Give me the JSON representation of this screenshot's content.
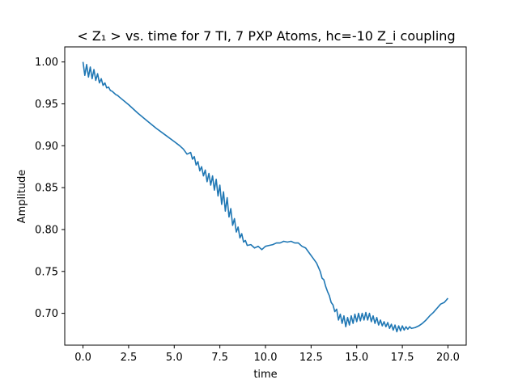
{
  "chart_data": {
    "type": "line",
    "title": "< Z₁ >  vs. time for 7 TI, 7 PXP Atoms, hᴄ=-10 Z_i coupling",
    "xlabel": "time",
    "ylabel": "Amplitude",
    "xlim": [
      -1.0,
      21.0
    ],
    "ylim": [
      0.662,
      1.018
    ],
    "xticks": [
      "0.0",
      "2.5",
      "5.0",
      "7.5",
      "10.0",
      "12.5",
      "15.0",
      "17.5",
      "20.0"
    ],
    "yticks": [
      "0.70",
      "0.75",
      "0.80",
      "0.85",
      "0.90",
      "0.95",
      "1.00"
    ],
    "grid": false,
    "legend": "none",
    "line_color": "#1f77b4",
    "series": [
      {
        "x": [
          0.0,
          0.1,
          0.2,
          0.3,
          0.4,
          0.5,
          0.6,
          0.7,
          0.8,
          0.9,
          1.0,
          1.1,
          1.2,
          1.3,
          1.4,
          1.5,
          1.6,
          1.7,
          1.8,
          1.9,
          2.0,
          2.5,
          3.0,
          3.5,
          4.0,
          4.5,
          5.0,
          5.3,
          5.5,
          5.7,
          5.9,
          6.0,
          6.1,
          6.2,
          6.3,
          6.4,
          6.5,
          6.6,
          6.7,
          6.8,
          6.9,
          7.0,
          7.1,
          7.2,
          7.3,
          7.4,
          7.5,
          7.6,
          7.7,
          7.8,
          7.9,
          8.0,
          8.1,
          8.2,
          8.3,
          8.4,
          8.5,
          8.6,
          8.7,
          8.8,
          8.9,
          9.0,
          9.2,
          9.4,
          9.6,
          9.8,
          10.0,
          10.2,
          10.4,
          10.6,
          10.8,
          11.0,
          11.2,
          11.4,
          11.6,
          11.8,
          12.0,
          12.2,
          12.4,
          12.6,
          12.8,
          13.0,
          13.1,
          13.2,
          13.3,
          13.4,
          13.5,
          13.6,
          13.7,
          13.8,
          13.9,
          14.0,
          14.1,
          14.2,
          14.3,
          14.4,
          14.5,
          14.6,
          14.7,
          14.8,
          14.9,
          15.0,
          15.1,
          15.2,
          15.3,
          15.4,
          15.5,
          15.6,
          15.7,
          15.8,
          15.9,
          16.0,
          16.1,
          16.2,
          16.3,
          16.4,
          16.5,
          16.6,
          16.7,
          16.8,
          16.9,
          17.0,
          17.1,
          17.2,
          17.3,
          17.4,
          17.5,
          17.6,
          17.7,
          17.8,
          17.9,
          18.0,
          18.2,
          18.4,
          18.6,
          18.8,
          19.0,
          19.2,
          19.4,
          19.6,
          19.8,
          20.0
        ],
        "y": [
          1.0,
          0.984,
          0.997,
          0.982,
          0.994,
          0.98,
          0.991,
          0.978,
          0.986,
          0.975,
          0.98,
          0.972,
          0.975,
          0.969,
          0.97,
          0.966,
          0.965,
          0.963,
          0.961,
          0.96,
          0.958,
          0.949,
          0.939,
          0.93,
          0.921,
          0.913,
          0.905,
          0.9,
          0.896,
          0.89,
          0.892,
          0.884,
          0.887,
          0.877,
          0.881,
          0.87,
          0.875,
          0.864,
          0.871,
          0.857,
          0.867,
          0.853,
          0.864,
          0.847,
          0.86,
          0.84,
          0.853,
          0.83,
          0.845,
          0.822,
          0.838,
          0.815,
          0.825,
          0.805,
          0.813,
          0.797,
          0.803,
          0.79,
          0.795,
          0.785,
          0.787,
          0.781,
          0.782,
          0.778,
          0.78,
          0.776,
          0.78,
          0.781,
          0.782,
          0.784,
          0.784,
          0.786,
          0.785,
          0.786,
          0.784,
          0.784,
          0.78,
          0.778,
          0.772,
          0.766,
          0.76,
          0.75,
          0.742,
          0.74,
          0.732,
          0.726,
          0.721,
          0.713,
          0.71,
          0.702,
          0.705,
          0.692,
          0.699,
          0.688,
          0.697,
          0.684,
          0.695,
          0.686,
          0.697,
          0.688,
          0.699,
          0.69,
          0.7,
          0.691,
          0.7,
          0.692,
          0.701,
          0.692,
          0.7,
          0.69,
          0.697,
          0.688,
          0.695,
          0.686,
          0.692,
          0.685,
          0.69,
          0.684,
          0.689,
          0.682,
          0.687,
          0.68,
          0.686,
          0.678,
          0.685,
          0.679,
          0.685,
          0.68,
          0.684,
          0.681,
          0.684,
          0.682,
          0.683,
          0.685,
          0.688,
          0.692,
          0.697,
          0.701,
          0.706,
          0.711,
          0.713,
          0.718
        ]
      }
    ]
  }
}
